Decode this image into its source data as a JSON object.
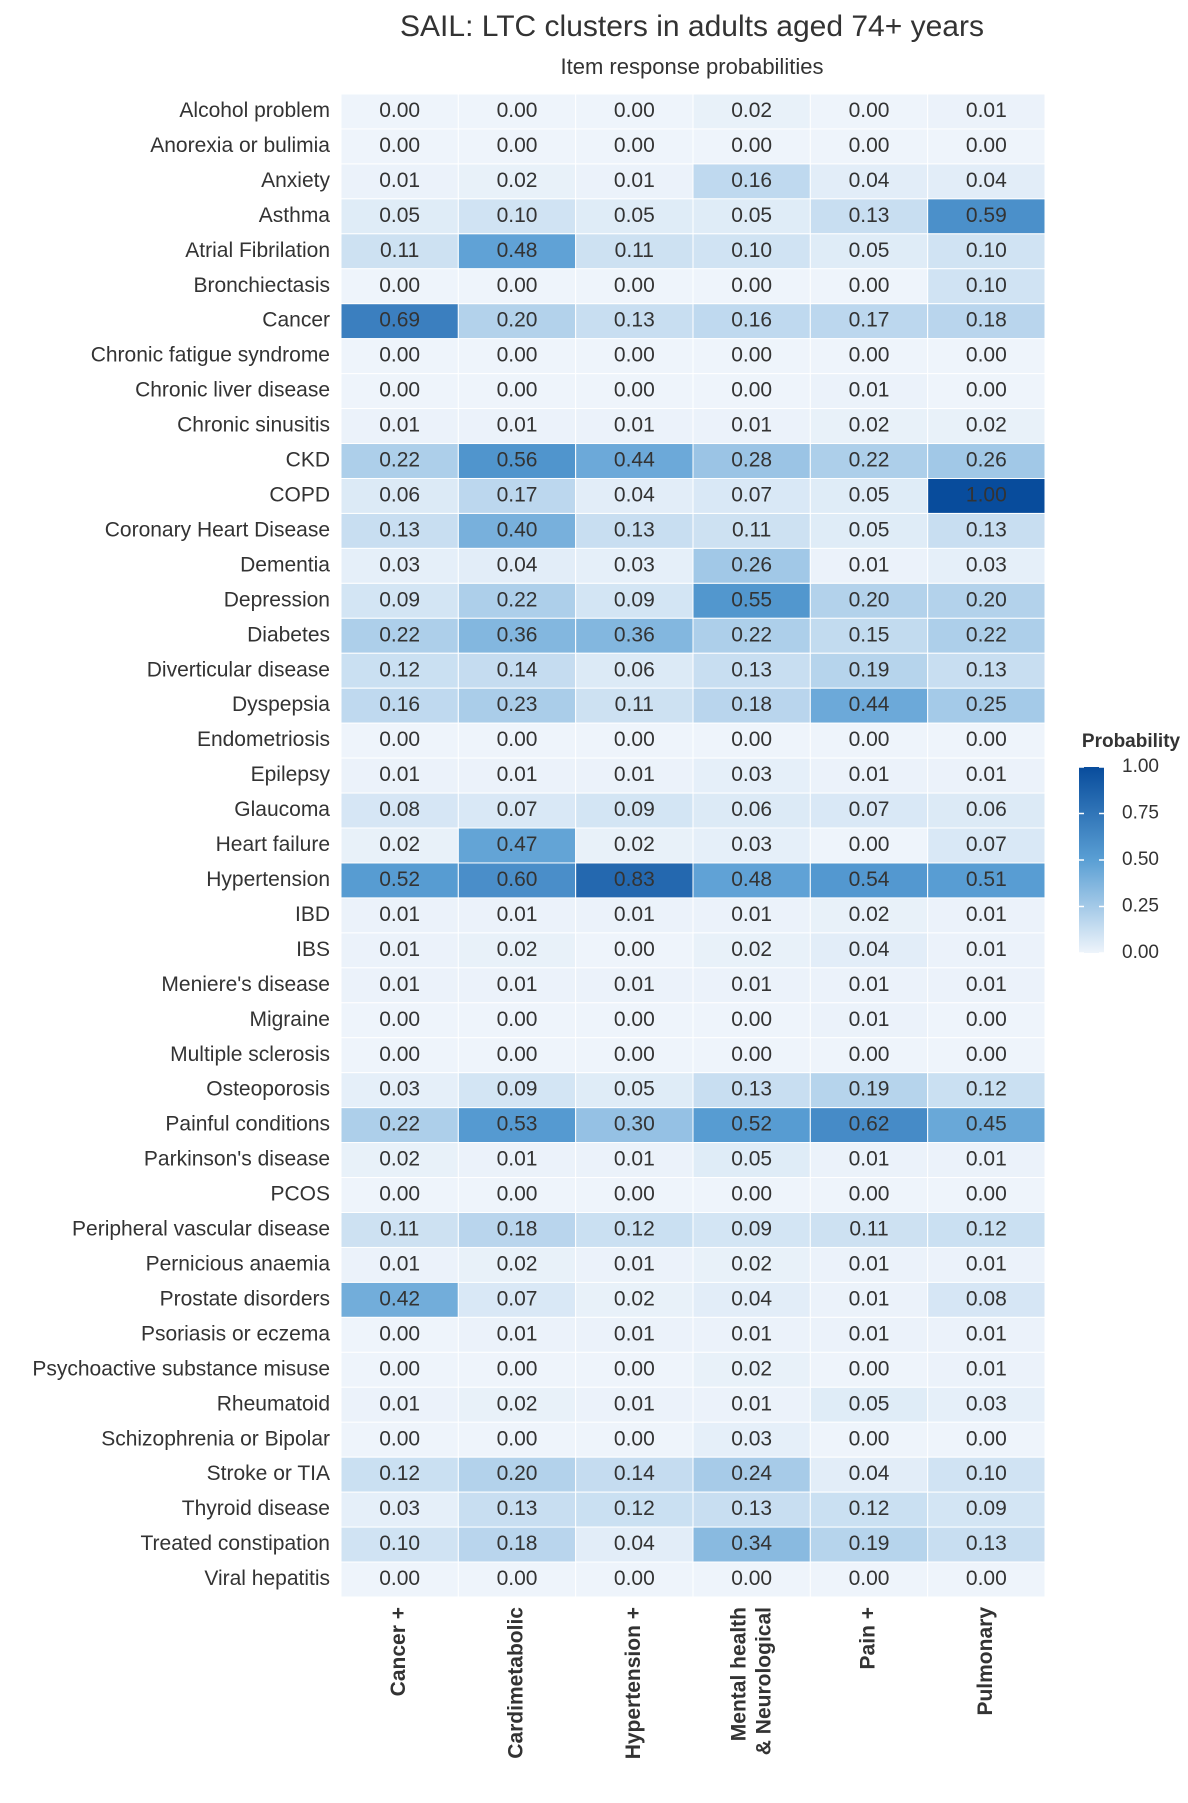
{
  "chart_data": {
    "type": "heatmap",
    "title": "SAIL: LTC clusters in adults aged 74+ years",
    "subtitle": "Item response probabilities",
    "categories": [
      "Cancer +",
      "Cardimetabolic",
      "Hypertension +",
      "Mental health\n& Neurological",
      "Pain +",
      "Pulmonary"
    ],
    "rows": [
      "Alcohol problem",
      "Anorexia or bulimia",
      "Anxiety",
      "Asthma",
      "Atrial Fibrilation",
      "Bronchiectasis",
      "Cancer",
      "Chronic fatigue syndrome",
      "Chronic liver disease",
      "Chronic sinusitis",
      "CKD",
      "COPD",
      "Coronary Heart Disease",
      "Dementia",
      "Depression",
      "Diabetes",
      "Diverticular disease",
      "Dyspepsia",
      "Endometriosis",
      "Epilepsy",
      "Glaucoma",
      "Heart failure",
      "Hypertension",
      "IBD",
      "IBS",
      "Meniere's disease",
      "Migraine",
      "Multiple sclerosis",
      "Osteoporosis",
      "Painful conditions",
      "Parkinson's disease",
      "PCOS",
      "Peripheral vascular disease",
      "Pernicious anaemia",
      "Prostate disorders",
      "Psoriasis or eczema",
      "Psychoactive substance misuse",
      "Rheumatoid",
      "Schizophrenia or Bipolar",
      "Stroke or TIA",
      "Thyroid disease",
      "Treated constipation",
      "Viral hepatitis"
    ],
    "values": [
      [
        0,
        0,
        0,
        0.02,
        0,
        0.01
      ],
      [
        0,
        0,
        0,
        0,
        0,
        0
      ],
      [
        0.01,
        0.02,
        0.01,
        0.16,
        0.04,
        0.04
      ],
      [
        0.05,
        0.1,
        0.05,
        0.05,
        0.13,
        0.59
      ],
      [
        0.11,
        0.48,
        0.11,
        0.1,
        0.05,
        0.1
      ],
      [
        0,
        0,
        0,
        0,
        0,
        0.1
      ],
      [
        0.69,
        0.2,
        0.13,
        0.16,
        0.17,
        0.18
      ],
      [
        0,
        0,
        0,
        0,
        0,
        0
      ],
      [
        0,
        0,
        0,
        0,
        0.01,
        0
      ],
      [
        0.01,
        0.01,
        0.01,
        0.01,
        0.02,
        0.02
      ],
      [
        0.22,
        0.56,
        0.44,
        0.28,
        0.22,
        0.26
      ],
      [
        0.06,
        0.17,
        0.04,
        0.07,
        0.05,
        1
      ],
      [
        0.13,
        0.4,
        0.13,
        0.11,
        0.05,
        0.13
      ],
      [
        0.03,
        0.04,
        0.03,
        0.26,
        0.01,
        0.03
      ],
      [
        0.09,
        0.22,
        0.09,
        0.55,
        0.2,
        0.2
      ],
      [
        0.22,
        0.36,
        0.36,
        0.22,
        0.15,
        0.22
      ],
      [
        0.12,
        0.14,
        0.06,
        0.13,
        0.19,
        0.13
      ],
      [
        0.16,
        0.23,
        0.11,
        0.18,
        0.44,
        0.25
      ],
      [
        0,
        0,
        0,
        0,
        0,
        0
      ],
      [
        0.01,
        0.01,
        0.01,
        0.03,
        0.01,
        0.01
      ],
      [
        0.08,
        0.07,
        0.09,
        0.06,
        0.07,
        0.06
      ],
      [
        0.02,
        0.47,
        0.02,
        0.03,
        0,
        0.07
      ],
      [
        0.52,
        0.6,
        0.83,
        0.48,
        0.54,
        0.51
      ],
      [
        0.01,
        0.01,
        0.01,
        0.01,
        0.02,
        0.01
      ],
      [
        0.01,
        0.02,
        0,
        0.02,
        0.04,
        0.01
      ],
      [
        0.01,
        0.01,
        0.01,
        0.01,
        0.01,
        0.01
      ],
      [
        0,
        0,
        0,
        0,
        0.01,
        0
      ],
      [
        0,
        0,
        0,
        0,
        0,
        0
      ],
      [
        0.03,
        0.09,
        0.05,
        0.13,
        0.19,
        0.12
      ],
      [
        0.22,
        0.53,
        0.3,
        0.52,
        0.62,
        0.45
      ],
      [
        0.02,
        0.01,
        0.01,
        0.05,
        0.01,
        0.01
      ],
      [
        0,
        0,
        0,
        0,
        0,
        0
      ],
      [
        0.11,
        0.18,
        0.12,
        0.09,
        0.11,
        0.12
      ],
      [
        0.01,
        0.02,
        0.01,
        0.02,
        0.01,
        0.01
      ],
      [
        0.42,
        0.07,
        0.02,
        0.04,
        0.01,
        0.08
      ],
      [
        0,
        0.01,
        0.01,
        0.01,
        0.01,
        0.01
      ],
      [
        0,
        0,
        0,
        0.02,
        0,
        0.01
      ],
      [
        0.01,
        0.02,
        0.01,
        0.01,
        0.05,
        0.03
      ],
      [
        0,
        0,
        0,
        0.03,
        0,
        0
      ],
      [
        0.12,
        0.2,
        0.14,
        0.24,
        0.04,
        0.1
      ],
      [
        0.03,
        0.13,
        0.12,
        0.13,
        0.12,
        0.09
      ],
      [
        0.1,
        0.18,
        0.04,
        0.34,
        0.19,
        0.13
      ],
      [
        0,
        0,
        0,
        0,
        0,
        0
      ]
    ],
    "value_labels": [
      [
        "0.00",
        "0.00",
        "0.00",
        "0.02",
        "0.00",
        "0.01"
      ],
      [
        "0.00",
        "0.00",
        "0.00",
        "0.00",
        "0.00",
        "0.00"
      ],
      [
        "0.01",
        "0.02",
        "0.01",
        "0.16",
        "0.04",
        "0.04"
      ],
      [
        "0.05",
        "0.10",
        "0.05",
        "0.05",
        "0.13",
        "0.59"
      ],
      [
        "0.11",
        "0.48",
        "0.11",
        "0.10",
        "0.05",
        "0.10"
      ],
      [
        "0.00",
        "0.00",
        "0.00",
        "0.00",
        "0.00",
        "0.10"
      ],
      [
        "0.69",
        "0.20",
        "0.13",
        "0.16",
        "0.17",
        "0.18"
      ],
      [
        "0.00",
        "0.00",
        "0.00",
        "0.00",
        "0.00",
        "0.00"
      ],
      [
        "0.00",
        "0.00",
        "0.00",
        "0.00",
        "0.01",
        "0.00"
      ],
      [
        "0.01",
        "0.01",
        "0.01",
        "0.01",
        "0.02",
        "0.02"
      ],
      [
        "0.22",
        "0.56",
        "0.44",
        "0.28",
        "0.22",
        "0.26"
      ],
      [
        "0.06",
        "0.17",
        "0.04",
        "0.07",
        "0.05",
        "1.00"
      ],
      [
        "0.13",
        "0.40",
        "0.13",
        "0.11",
        "0.05",
        "0.13"
      ],
      [
        "0.03",
        "0.04",
        "0.03",
        "0.26",
        "0.01",
        "0.03"
      ],
      [
        "0.09",
        "0.22",
        "0.09",
        "0.55",
        "0.20",
        "0.20"
      ],
      [
        "0.22",
        "0.36",
        "0.36",
        "0.22",
        "0.15",
        "0.22"
      ],
      [
        "0.12",
        "0.14",
        "0.06",
        "0.13",
        "0.19",
        "0.13"
      ],
      [
        "0.16",
        "0.23",
        "0.11",
        "0.18",
        "0.44",
        "0.25"
      ],
      [
        "0.00",
        "0.00",
        "0.00",
        "0.00",
        "0.00",
        "0.00"
      ],
      [
        "0.01",
        "0.01",
        "0.01",
        "0.03",
        "0.01",
        "0.01"
      ],
      [
        "0.08",
        "0.07",
        "0.09",
        "0.06",
        "0.07",
        "0.06"
      ],
      [
        "0.02",
        "0.47",
        "0.02",
        "0.03",
        "0.00",
        "0.07"
      ],
      [
        "0.52",
        "0.60",
        "0.83",
        "0.48",
        "0.54",
        "0.51"
      ],
      [
        "0.01",
        "0.01",
        "0.01",
        "0.01",
        "0.02",
        "0.01"
      ],
      [
        "0.01",
        "0.02",
        "0.00",
        "0.02",
        "0.04",
        "0.01"
      ],
      [
        "0.01",
        "0.01",
        "0.01",
        "0.01",
        "0.01",
        "0.01"
      ],
      [
        "0.00",
        "0.00",
        "0.00",
        "0.00",
        "0.01",
        "0.00"
      ],
      [
        "0.00",
        "0.00",
        "0.00",
        "0.00",
        "0.00",
        "0.00"
      ],
      [
        "0.03",
        "0.09",
        "0.05",
        "0.13",
        "0.19",
        "0.12"
      ],
      [
        "0.22",
        "0.53",
        "0.30",
        "0.52",
        "0.62",
        "0.45"
      ],
      [
        "0.02",
        "0.01",
        "0.01",
        "0.05",
        "0.01",
        "0.01"
      ],
      [
        "0.00",
        "0.00",
        "0.00",
        "0.00",
        "0.00",
        "0.00"
      ],
      [
        "0.11",
        "0.18",
        "0.12",
        "0.09",
        "0.11",
        "0.12"
      ],
      [
        "0.01",
        "0.02",
        "0.01",
        "0.02",
        "0.01",
        "0.01"
      ],
      [
        "0.42",
        "0.07",
        "0.02",
        "0.04",
        "0.01",
        "0.08"
      ],
      [
        "0.00",
        "0.01",
        "0.01",
        "0.01",
        "0.01",
        "0.01"
      ],
      [
        "0.00",
        "0.00",
        "0.00",
        "0.02",
        "0.00",
        "0.01"
      ],
      [
        "0.01",
        "0.02",
        "0.01",
        "0.01",
        "0.05",
        "0.03"
      ],
      [
        "0.00",
        "0.00",
        "0.00",
        "0.03",
        "0.00",
        "0.00"
      ],
      [
        "0.12",
        "0.20",
        "0.14",
        "0.24",
        "0.04",
        "0.10"
      ],
      [
        "0.03",
        "0.13",
        "0.12",
        "0.13",
        "0.12",
        "0.09"
      ],
      [
        "0.10",
        "0.18",
        "0.04",
        "0.34",
        "0.19",
        "0.13"
      ],
      [
        "0.00",
        "0.00",
        "0.00",
        "0.00",
        "0.00",
        "0.00"
      ]
    ],
    "legend_title": "Probability",
    "zlim": [
      0,
      1
    ],
    "zticks": [
      {
        "value": 0,
        "label": "0.00"
      },
      {
        "value": 0.25,
        "label": "0.25"
      },
      {
        "value": 0.5,
        "label": "0.50"
      },
      {
        "value": 0.75,
        "label": "0.75"
      },
      {
        "value": 1,
        "label": "1.00"
      }
    ],
    "colors": [
      "#eef4fb",
      "#5a9fd4",
      "#084c9c"
    ]
  }
}
